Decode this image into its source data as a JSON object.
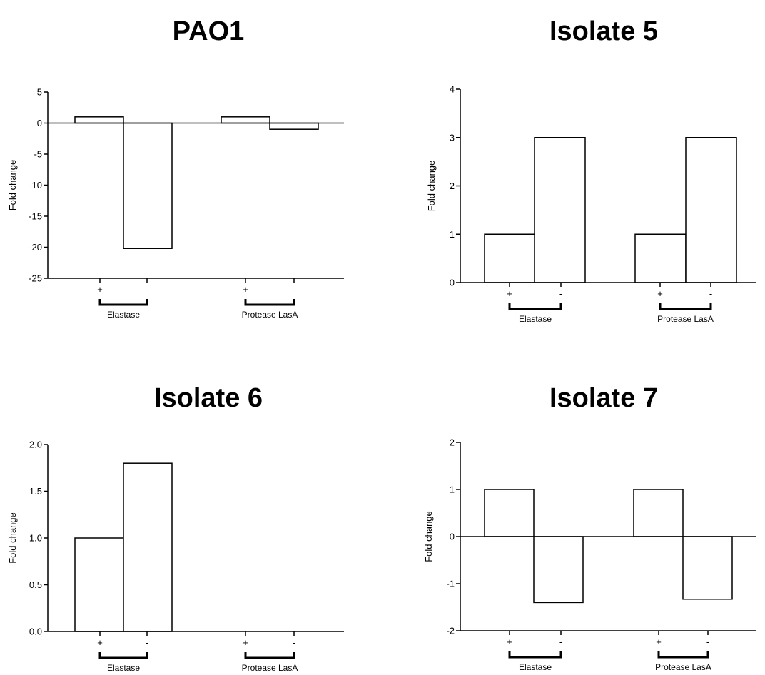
{
  "chart_data": [
    {
      "type": "bar",
      "title": "PAO1",
      "ylabel": "Fold change",
      "ylim": [
        -25,
        5
      ],
      "yticks": [
        5,
        0,
        -5,
        -10,
        -15,
        -20,
        -25
      ],
      "ytick_labels": [
        "5",
        "0",
        "-5",
        "-10",
        "-15",
        "-20",
        "-25"
      ],
      "categories": [
        "+",
        "-",
        "+",
        "-"
      ],
      "groups": [
        "Elastase",
        "Protease LasA"
      ],
      "values": [
        1,
        -20.2,
        1,
        -1
      ],
      "grid": false
    },
    {
      "type": "bar",
      "title": "Isolate 5",
      "ylabel": "Fold change",
      "ylim": [
        0,
        4
      ],
      "yticks": [
        4,
        3,
        2,
        1,
        0
      ],
      "ytick_labels": [
        "4",
        "3",
        "2",
        "1",
        "0"
      ],
      "categories": [
        "+",
        "-",
        "+",
        "-"
      ],
      "groups": [
        "Elastase",
        "Protease LasA"
      ],
      "values": [
        1,
        3,
        1,
        3
      ],
      "grid": false
    },
    {
      "type": "bar",
      "title": "Isolate 6",
      "ylabel": "Fold change",
      "ylim": [
        0,
        2
      ],
      "yticks": [
        2,
        1.5,
        1,
        0.5,
        0
      ],
      "ytick_labels": [
        "2.0",
        "1.5",
        "1.0",
        "0.5",
        "0.0"
      ],
      "categories": [
        "+",
        "-",
        "+",
        "-"
      ],
      "groups": [
        "Elastase",
        "Protease LasA"
      ],
      "values": [
        1,
        1.8,
        null,
        null
      ],
      "grid": false
    },
    {
      "type": "bar",
      "title": "Isolate 7",
      "ylabel": "Fold change",
      "ylim": [
        -2,
        2
      ],
      "yticks": [
        2,
        1,
        0,
        -1,
        -2
      ],
      "ytick_labels": [
        "2",
        "1",
        "0",
        "-1",
        "-2"
      ],
      "categories": [
        "+",
        "-",
        "+",
        "-"
      ],
      "groups": [
        "Elastase",
        "Protease LasA"
      ],
      "values": [
        1,
        -1.4,
        1,
        -1.33
      ],
      "grid": false
    }
  ]
}
